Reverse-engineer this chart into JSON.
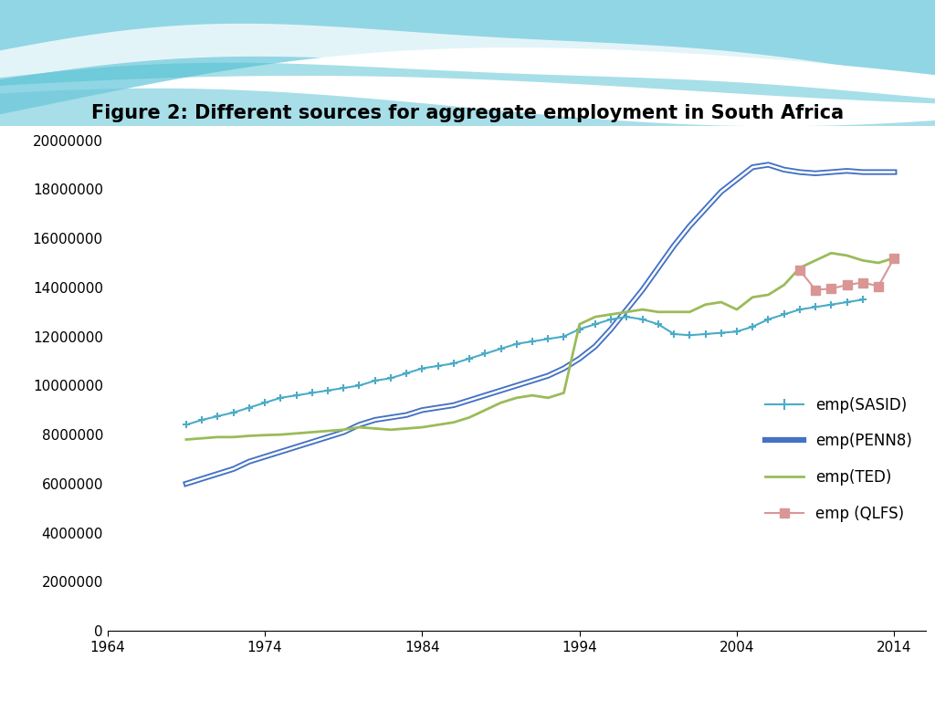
{
  "title": "Figure 2: Different sources for aggregate employment in South Africa",
  "title_fontsize": 15,
  "title_fontweight": "bold",
  "background_color": "#ffffff",
  "xlim": [
    1964,
    2016
  ],
  "ylim": [
    0,
    20000000
  ],
  "xticks": [
    1964,
    1974,
    1984,
    1994,
    2004,
    2014
  ],
  "yticks": [
    0,
    2000000,
    4000000,
    6000000,
    8000000,
    10000000,
    12000000,
    14000000,
    16000000,
    18000000,
    20000000
  ],
  "sasid_color": "#4bacc6",
  "penn8_color": "#4472c4",
  "ted_color": "#9bbb59",
  "qlfs_color": "#d99694",
  "sasid_years": [
    1969,
    1970,
    1971,
    1972,
    1973,
    1974,
    1975,
    1976,
    1977,
    1978,
    1979,
    1980,
    1981,
    1982,
    1983,
    1984,
    1985,
    1986,
    1987,
    1988,
    1989,
    1990,
    1991,
    1992,
    1993,
    1994,
    1995,
    1996,
    1997,
    1998,
    1999,
    2000,
    2001,
    2002,
    2003,
    2004,
    2005,
    2006,
    2007,
    2008,
    2009,
    2010,
    2011,
    2012
  ],
  "sasid_values": [
    8400000,
    8600000,
    8750000,
    8900000,
    9100000,
    9300000,
    9500000,
    9600000,
    9700000,
    9800000,
    9900000,
    10000000,
    10200000,
    10300000,
    10500000,
    10700000,
    10800000,
    10900000,
    11100000,
    11300000,
    11500000,
    11700000,
    11800000,
    11900000,
    12000000,
    12300000,
    12500000,
    12700000,
    12800000,
    12700000,
    12500000,
    12100000,
    12050000,
    12100000,
    12150000,
    12200000,
    12400000,
    12700000,
    12900000,
    13100000,
    13200000,
    13300000,
    13400000,
    13500000
  ],
  "penn8_years": [
    1969,
    1970,
    1971,
    1972,
    1973,
    1974,
    1975,
    1976,
    1977,
    1978,
    1979,
    1980,
    1981,
    1982,
    1983,
    1984,
    1985,
    1986,
    1987,
    1988,
    1989,
    1990,
    1991,
    1992,
    1993,
    1994,
    1995,
    1996,
    1997,
    1998,
    1999,
    2000,
    2001,
    2002,
    2003,
    2004,
    2005,
    2006,
    2007,
    2008,
    2009,
    2010,
    2011,
    2012,
    2013,
    2014
  ],
  "penn8_values": [
    6000000,
    6200000,
    6400000,
    6600000,
    6900000,
    7100000,
    7300000,
    7500000,
    7700000,
    7900000,
    8100000,
    8400000,
    8600000,
    8700000,
    8800000,
    9000000,
    9100000,
    9200000,
    9400000,
    9600000,
    9800000,
    10000000,
    10200000,
    10400000,
    10700000,
    11100000,
    11600000,
    12300000,
    13100000,
    13900000,
    14800000,
    15700000,
    16500000,
    17200000,
    17900000,
    18400000,
    18900000,
    19000000,
    18800000,
    18700000,
    18650000,
    18700000,
    18750000,
    18700000,
    18700000,
    18700000
  ],
  "ted_years": [
    1969,
    1970,
    1971,
    1972,
    1973,
    1974,
    1975,
    1976,
    1977,
    1978,
    1979,
    1980,
    1981,
    1982,
    1983,
    1984,
    1985,
    1986,
    1987,
    1988,
    1989,
    1990,
    1991,
    1992,
    1993,
    1994,
    1995,
    1996,
    1997,
    1998,
    1999,
    2000,
    2001,
    2002,
    2003,
    2004,
    2005,
    2006,
    2007,
    2008,
    2009,
    2010,
    2011,
    2012,
    2013,
    2014
  ],
  "ted_values": [
    7800000,
    7850000,
    7900000,
    7900000,
    7950000,
    7980000,
    8000000,
    8050000,
    8100000,
    8150000,
    8200000,
    8300000,
    8250000,
    8200000,
    8250000,
    8300000,
    8400000,
    8500000,
    8700000,
    9000000,
    9300000,
    9500000,
    9600000,
    9500000,
    9700000,
    12500000,
    12800000,
    12900000,
    13000000,
    13100000,
    13000000,
    13000000,
    13000000,
    13300000,
    13400000,
    13100000,
    13600000,
    13700000,
    14100000,
    14800000,
    15100000,
    15400000,
    15300000,
    15100000,
    15000000,
    15200000
  ],
  "qlfs_years": [
    2008,
    2009,
    2010,
    2011,
    2012,
    2013,
    2014
  ],
  "qlfs_values": [
    14700000,
    13900000,
    13950000,
    14100000,
    14200000,
    14050000,
    15200000
  ],
  "legend_labels": [
    "emp(SASID)",
    "emp(PENN8)",
    "emp(TED)",
    "emp (QLFS)"
  ],
  "header_bg": "#b8e8f0",
  "wave1_color": "#7dd4e8",
  "wave2_color": "#5bc8dc",
  "wave_white": "#f0faff"
}
